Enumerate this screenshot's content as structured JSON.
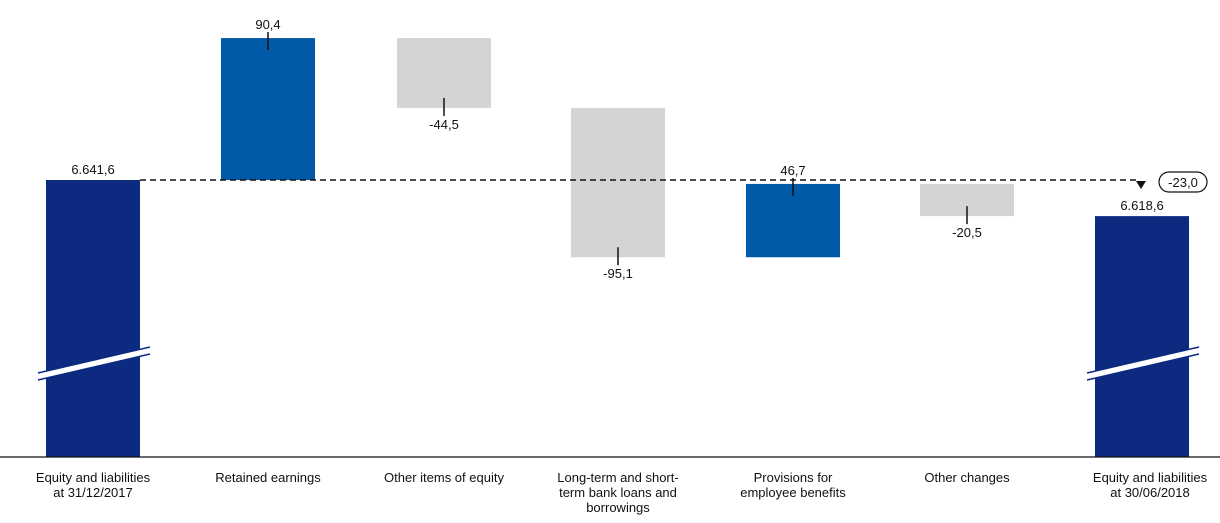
{
  "chart_data": {
    "type": "bar",
    "subtype": "waterfall",
    "categories": [
      [
        "Equity and liabilities",
        "at 31/12/2017"
      ],
      [
        "Retained earnings"
      ],
      [
        "Other items of equity"
      ],
      [
        "Long-term and short-",
        "term bank loans and",
        "borrowings"
      ],
      [
        "Provisions for",
        "employee benefits"
      ],
      [
        "Other changes"
      ],
      [
        "Equity and liabilities",
        "at 30/06/2018"
      ]
    ],
    "bars": [
      {
        "kind": "total",
        "value": 6641.6,
        "label": "6.641,6"
      },
      {
        "kind": "increase",
        "value": 90.4,
        "label": "90,4"
      },
      {
        "kind": "decrease",
        "value": -44.5,
        "label": "-44,5"
      },
      {
        "kind": "decrease",
        "value": -95.1,
        "label": "-95,1"
      },
      {
        "kind": "increase",
        "value": 46.7,
        "label": "46,7"
      },
      {
        "kind": "decrease",
        "value": -20.5,
        "label": "-20,5"
      },
      {
        "kind": "total",
        "value": 6618.6,
        "label": "6.618,6"
      }
    ],
    "difference": {
      "value": -23.0,
      "label": "-23,0"
    },
    "axis_break": true,
    "grid": false,
    "legend": "none",
    "colors": {
      "total": "#0b2a80",
      "increase": "#005aa7",
      "decrease": "#d4d4d4",
      "reference_line": "#111111"
    }
  }
}
